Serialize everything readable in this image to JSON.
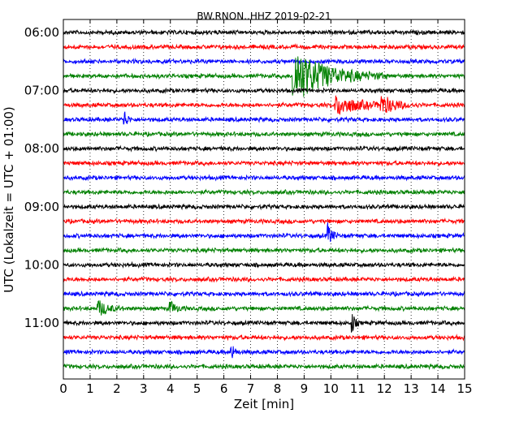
{
  "chart_data": {
    "type": "line",
    "title": "BW.RNON..HHZ 2019-02-21",
    "xlabel": "Zeit  [min]",
    "ylabel": "UTC (Lokalzeit = UTC + 01:00)",
    "xlim": [
      0,
      15
    ],
    "x_ticks": [
      "0",
      "1",
      "2",
      "3",
      "4",
      "5",
      "6",
      "7",
      "8",
      "9",
      "10",
      "11",
      "12",
      "13",
      "14",
      "15"
    ],
    "y_ticks": [
      {
        "label": "06:00",
        "row": 0
      },
      {
        "label": "07:00",
        "row": 4
      },
      {
        "label": "08:00",
        "row": 8
      },
      {
        "label": "09:00",
        "row": 12
      },
      {
        "label": "10:00",
        "row": 16
      },
      {
        "label": "11:00",
        "row": 20
      }
    ],
    "row_interval_minutes": 15,
    "row_colors": [
      "#000000",
      "#ff0000",
      "#0000ff",
      "#008000"
    ],
    "grid": "vertical dotted",
    "traces": [
      {
        "start": "06:00",
        "color": "#000000",
        "events": []
      },
      {
        "start": "06:15",
        "color": "#ff0000",
        "events": []
      },
      {
        "start": "06:30",
        "color": "#0000ff",
        "events": []
      },
      {
        "start": "06:45",
        "color": "#008000",
        "events": [
          {
            "t": 8.6,
            "amp": 1.0,
            "dur": 3.5
          }
        ]
      },
      {
        "start": "07:00",
        "color": "#000000",
        "events": []
      },
      {
        "start": "07:15",
        "color": "#ff0000",
        "events": [
          {
            "t": 10.2,
            "amp": 0.35,
            "dur": 2.5
          },
          {
            "t": 11.9,
            "amp": 0.3,
            "dur": 1.5
          }
        ]
      },
      {
        "start": "07:30",
        "color": "#0000ff",
        "events": [
          {
            "t": 2.3,
            "amp": 0.3,
            "dur": 0.3
          }
        ]
      },
      {
        "start": "07:45",
        "color": "#008000",
        "events": []
      },
      {
        "start": "08:00",
        "color": "#000000",
        "events": []
      },
      {
        "start": "08:15",
        "color": "#ff0000",
        "events": []
      },
      {
        "start": "08:30",
        "color": "#0000ff",
        "events": []
      },
      {
        "start": "08:45",
        "color": "#008000",
        "events": []
      },
      {
        "start": "09:00",
        "color": "#000000",
        "events": []
      },
      {
        "start": "09:15",
        "color": "#ff0000",
        "events": []
      },
      {
        "start": "09:30",
        "color": "#0000ff",
        "events": [
          {
            "t": 9.9,
            "amp": 0.4,
            "dur": 0.4
          }
        ]
      },
      {
        "start": "09:45",
        "color": "#008000",
        "events": []
      },
      {
        "start": "10:00",
        "color": "#000000",
        "events": []
      },
      {
        "start": "10:15",
        "color": "#ff0000",
        "events": []
      },
      {
        "start": "10:30",
        "color": "#0000ff",
        "events": []
      },
      {
        "start": "10:45",
        "color": "#008000",
        "events": [
          {
            "t": 1.3,
            "amp": 0.3,
            "dur": 1.0
          },
          {
            "t": 4.0,
            "amp": 0.25,
            "dur": 0.6
          }
        ]
      },
      {
        "start": "11:00",
        "color": "#000000",
        "events": [
          {
            "t": 10.8,
            "amp": 0.35,
            "dur": 0.3
          }
        ]
      },
      {
        "start": "11:15",
        "color": "#ff0000",
        "events": []
      },
      {
        "start": "11:30",
        "color": "#0000ff",
        "events": [
          {
            "t": 6.3,
            "amp": 0.3,
            "dur": 0.3
          }
        ]
      },
      {
        "start": "11:45",
        "color": "#008000",
        "events": []
      }
    ]
  }
}
